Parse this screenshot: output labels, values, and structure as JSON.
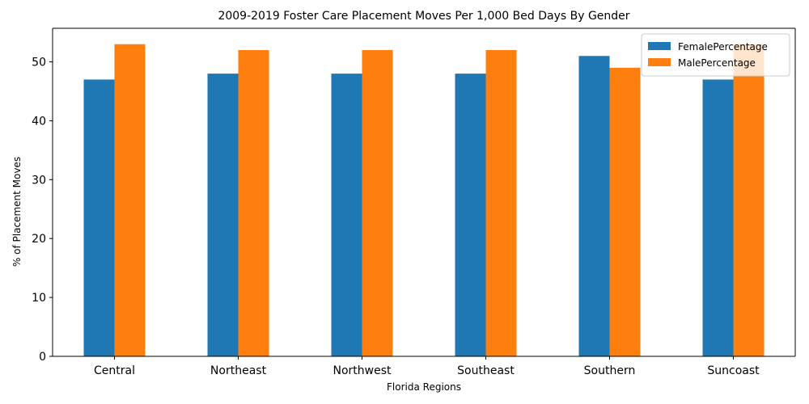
{
  "chart_data": {
    "type": "bar",
    "title": "2009-2019 Foster Care Placement Moves Per 1,000 Bed Days By Gender",
    "xlabel": "Florida Regions",
    "ylabel": "% of Placement Moves",
    "categories": [
      "Central",
      "Northeast",
      "Northwest",
      "Southeast",
      "Southern",
      "Suncoast"
    ],
    "series": [
      {
        "name": "FemalePercentage",
        "color": "#1f77b4",
        "values": [
          47,
          48,
          48,
          48,
          51,
          47
        ]
      },
      {
        "name": "MalePercentage",
        "color": "#ff7f0e",
        "values": [
          53,
          52,
          52,
          52,
          49,
          53
        ]
      }
    ],
    "ylim": [
      0,
      55.7
    ],
    "yticks": [
      0,
      10,
      20,
      30,
      40,
      50
    ],
    "grid": false,
    "legend_position": "top-right"
  }
}
